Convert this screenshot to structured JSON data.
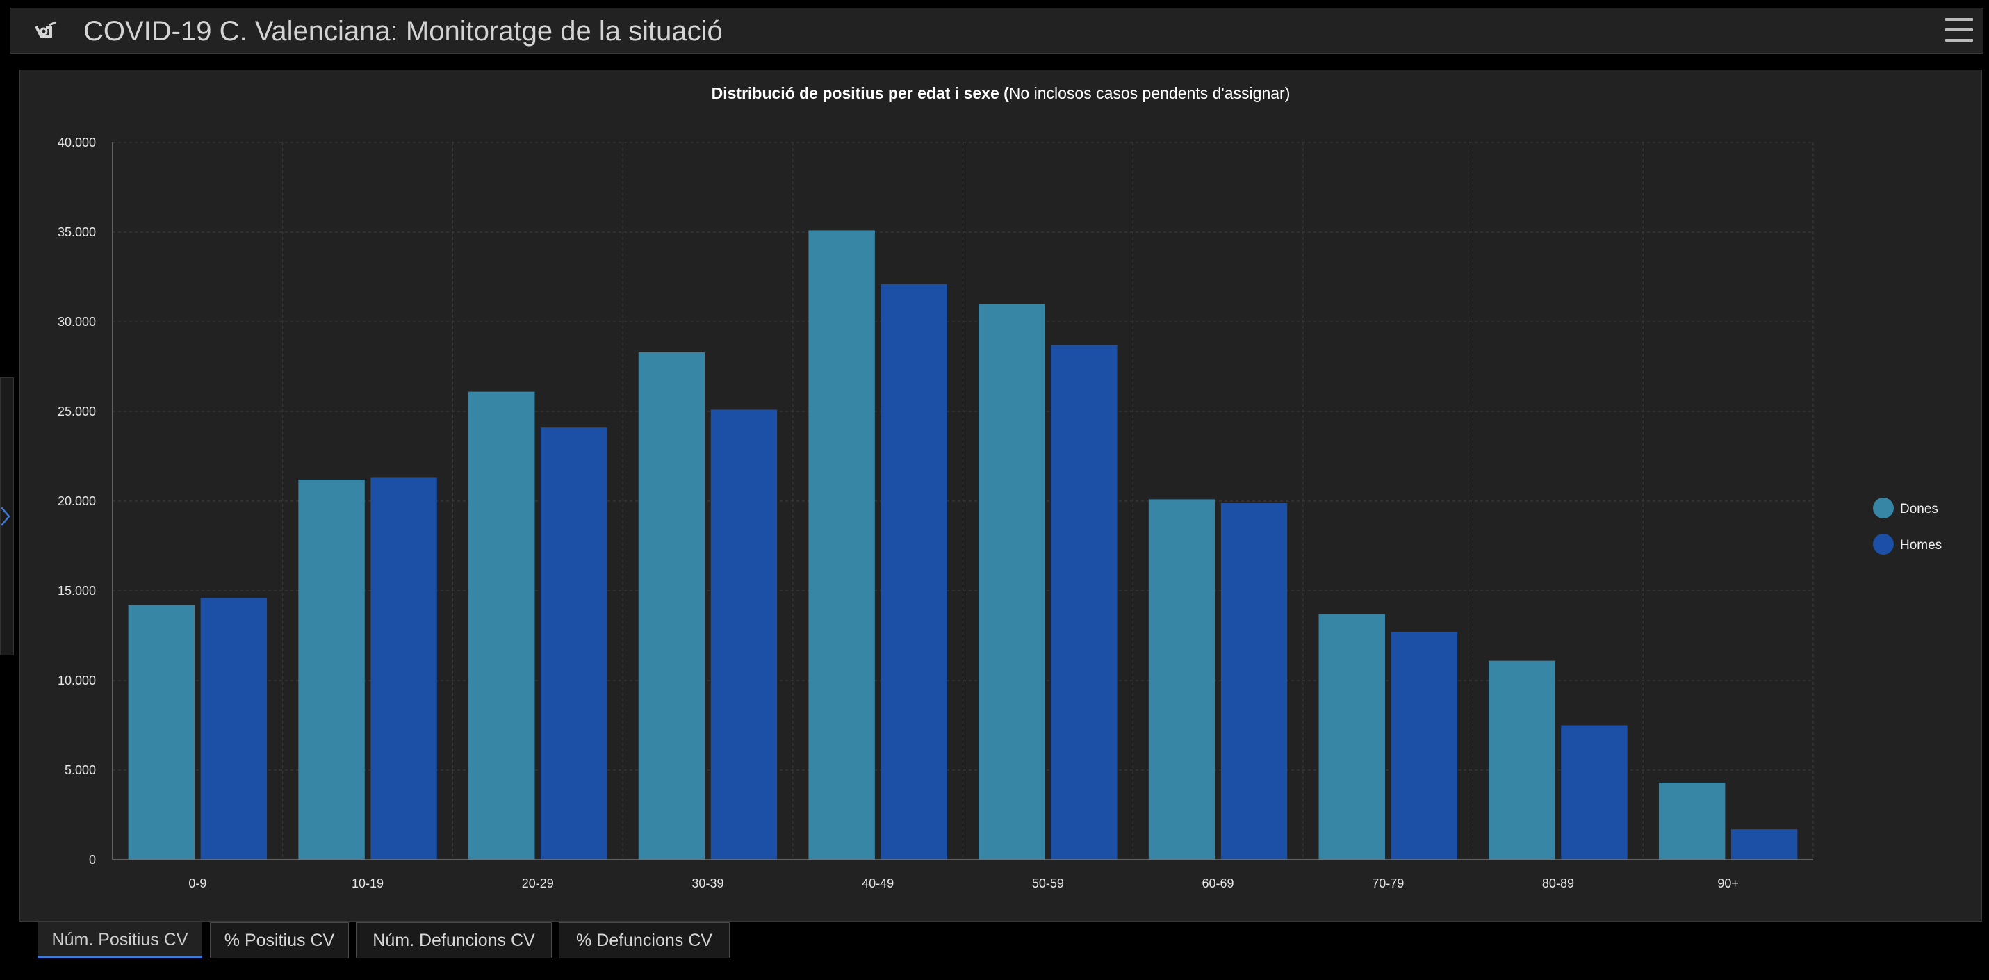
{
  "app": {
    "title": "COVID-19 C. Valenciana: Monitoratge de la situació",
    "logo_icon": "gva-logo-icon",
    "menu_icon": "hamburger-menu-icon",
    "side_toggle_icon": "chevron-right-icon"
  },
  "chart_data": {
    "type": "bar",
    "title_bold": "Distribució de positius per edat i sexe (",
    "title_rest": "No inclosos casos pendents d'assignar)",
    "xlabel": "",
    "ylabel": "",
    "categories": [
      "0-9",
      "10-19",
      "20-29",
      "30-39",
      "40-49",
      "50-59",
      "60-69",
      "70-79",
      "80-89",
      "90+"
    ],
    "series": [
      {
        "name": "Dones",
        "color": "#3886a6",
        "values": [
          14200,
          21200,
          26100,
          28300,
          35100,
          31000,
          20100,
          13700,
          11100,
          4300
        ]
      },
      {
        "name": "Homes",
        "color": "#1c4fa6",
        "values": [
          14600,
          21300,
          24100,
          25100,
          32100,
          28700,
          19900,
          12700,
          7500,
          1700
        ]
      }
    ],
    "ylim": [
      0,
      40000
    ],
    "yticks": [
      "0",
      "5.000",
      "10.000",
      "15.000",
      "20.000",
      "25.000",
      "30.000",
      "35.000",
      "40.000"
    ],
    "grid": true,
    "legend_position": "right"
  },
  "tabs": [
    {
      "label": "Núm. Positius CV",
      "active": true
    },
    {
      "label": "% Positius CV",
      "active": false
    },
    {
      "label": "Núm. Defuncions CV",
      "active": false
    },
    {
      "label": "% Defuncions CV",
      "active": false
    }
  ]
}
